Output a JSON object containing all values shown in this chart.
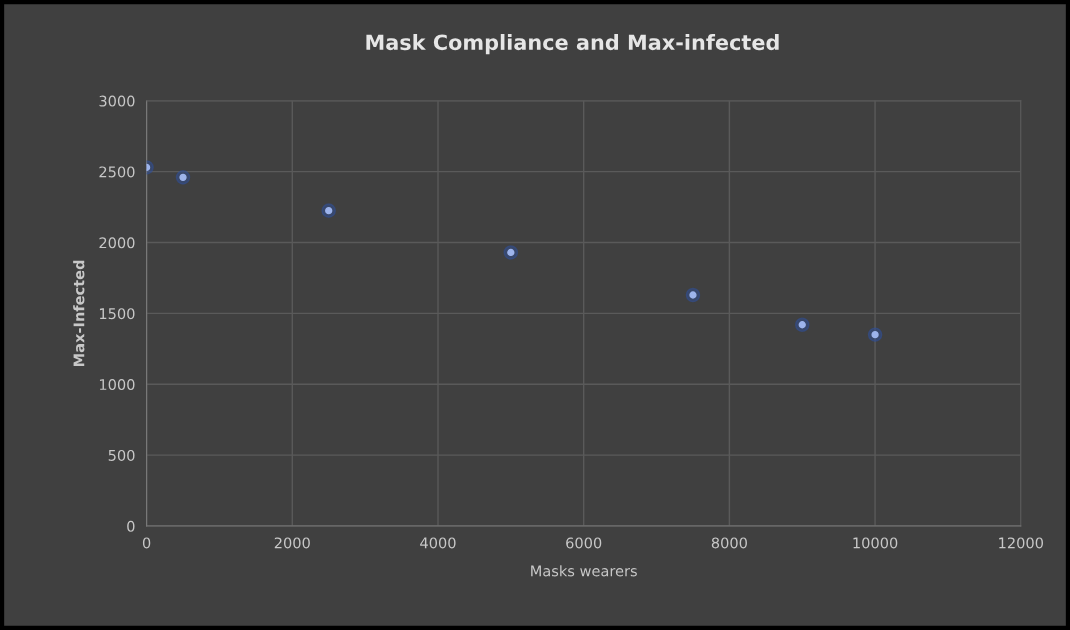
{
  "chart_data": {
    "type": "scatter",
    "title": "Mask Compliance and Max-infected",
    "xlabel": "Masks wearers",
    "ylabel": "Max-Infected",
    "x": [
      0,
      500,
      2500,
      5000,
      7500,
      9000,
      10000
    ],
    "series": [
      {
        "color": "#9db4ec",
        "values": [
          2530,
          2460,
          2225,
          1930,
          1630,
          1420,
          1350
        ]
      }
    ],
    "xlim": [
      0,
      12000
    ],
    "xticks": [
      0,
      2000,
      4000,
      6000,
      8000,
      10000,
      12000
    ],
    "ylim": [
      0,
      3000
    ],
    "yticks": [
      0,
      500,
      1000,
      1500,
      2000,
      2500,
      3000
    ],
    "grid": true,
    "marker": "circle"
  }
}
